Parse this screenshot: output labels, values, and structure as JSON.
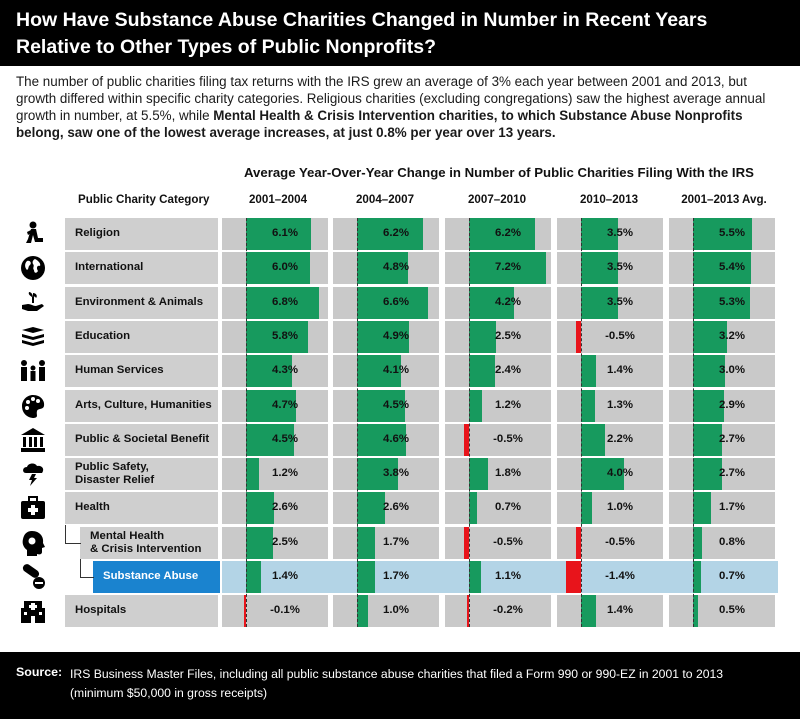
{
  "title_line1": "How Have Substance Abuse Charities Changed in Number in Recent Years",
  "title_line2": "Relative to Other Types of Public Nonprofits?",
  "intro_part1": "The number of public charities filing tax returns with the IRS grew an average of 3% each year between 2001 and 2013, but growth differed within specific charity categories. Religious charities (excluding congregations) saw the highest average annual growth in number, at 5.5%, while ",
  "intro_bold": "Mental Health & Crisis Intervention charities, to which Substance Abuse Nonprofits belong, saw one of the lowest average increases, at just 0.8% per year over 13 years.",
  "colors": {
    "header_bg": "#000000",
    "positive": "#179a5e",
    "negative": "#e8141b",
    "row_bg": "#cfcfcf",
    "highlight_bg": "#b3d4e6",
    "highlight_label": "#1a83cf"
  },
  "chart_data": {
    "type": "bar",
    "title": "Average Year-Over-Year Change in Number of Public Charities Filing With the IRS",
    "category_header": "Public Charity Category",
    "unit": "%",
    "columns": [
      "2001–2004",
      "2004–2007",
      "2007–2010",
      "2010–2013",
      "2001–2013 Avg."
    ],
    "rows": [
      {
        "label": "Religion",
        "icon": "praying-person-icon",
        "values": [
          6.1,
          6.2,
          6.2,
          3.5,
          5.5
        ],
        "labels": [
          "6.1%",
          "6.2%",
          "6.2%",
          "3.5%",
          "5.5%"
        ]
      },
      {
        "label": "International",
        "icon": "globe-icon",
        "values": [
          6.0,
          4.8,
          7.2,
          3.5,
          5.4
        ],
        "labels": [
          "6.0%",
          "4.8%",
          "7.2%",
          "3.5%",
          "5.4%"
        ]
      },
      {
        "label": "Environment & Animals",
        "icon": "hand-plant-icon",
        "values": [
          6.8,
          6.6,
          4.2,
          3.5,
          5.3
        ],
        "labels": [
          "6.8%",
          "6.6%",
          "4.2%",
          "3.5%",
          "5.3%"
        ]
      },
      {
        "label": "Education",
        "icon": "books-icon",
        "values": [
          5.8,
          4.9,
          2.5,
          -0.5,
          3.2
        ],
        "labels": [
          "5.8%",
          "4.9%",
          "2.5%",
          "-0.5%",
          "3.2%"
        ]
      },
      {
        "label": "Human Services",
        "icon": "family-icon",
        "values": [
          4.3,
          4.1,
          2.4,
          1.4,
          3.0
        ],
        "labels": [
          "4.3%",
          "4.1%",
          "2.4%",
          "1.4%",
          "3.0%"
        ]
      },
      {
        "label": "Arts, Culture, Humanities",
        "icon": "palette-icon",
        "values": [
          4.7,
          4.5,
          1.2,
          1.3,
          2.9
        ],
        "labels": [
          "4.7%",
          "4.5%",
          "1.2%",
          "1.3%",
          "2.9%"
        ]
      },
      {
        "label": "Public & Societal Benefit",
        "icon": "building-icon",
        "values": [
          4.5,
          4.6,
          -0.5,
          2.2,
          2.7
        ],
        "labels": [
          "4.5%",
          "4.6%",
          "-0.5%",
          "2.2%",
          "2.7%"
        ]
      },
      {
        "label": "Public Safety, Disaster Relief",
        "label_line1": "Public Safety,",
        "label_line2": "Disaster Relief",
        "icon": "storm-icon",
        "values": [
          1.2,
          3.8,
          1.8,
          4.0,
          2.7
        ],
        "labels": [
          "1.2%",
          "3.8%",
          "1.8%",
          "4.0%",
          "2.7%"
        ]
      },
      {
        "label": "Health",
        "icon": "medical-kit-icon",
        "values": [
          2.6,
          2.6,
          0.7,
          1.0,
          1.7
        ],
        "labels": [
          "2.6%",
          "2.6%",
          "0.7%",
          "1.0%",
          "1.7%"
        ]
      },
      {
        "label": "Mental Health & Crisis Intervention",
        "label_line1": "Mental Health",
        "label_line2": "& Crisis Intervention",
        "icon": "head-icon",
        "indent": 1,
        "values": [
          2.5,
          1.7,
          -0.5,
          -0.5,
          0.8
        ],
        "labels": [
          "2.5%",
          "1.7%",
          "-0.5%",
          "-0.5%",
          "0.8%"
        ]
      },
      {
        "label": "Substance Abuse",
        "icon": "pills-icon",
        "indent": 2,
        "highlight": true,
        "values": [
          1.4,
          1.7,
          1.1,
          -1.4,
          0.7
        ],
        "labels": [
          "1.4%",
          "1.7%",
          "1.1%",
          "-1.4%",
          "0.7%"
        ]
      },
      {
        "label": "Hospitals",
        "icon": "hospital-icon",
        "values": [
          -0.1,
          1.0,
          -0.2,
          1.4,
          0.5
        ],
        "labels": [
          "-0.1%",
          "1.0%",
          "-0.2%",
          "1.4%",
          "0.5%"
        ]
      }
    ]
  },
  "source_label": "Source:",
  "source_text": "IRS Business Master Files, including all public substance abuse charities that filed a Form 990 or 990-EZ in 2001 to 2013 (minimum $50,000 in gross receipts)"
}
